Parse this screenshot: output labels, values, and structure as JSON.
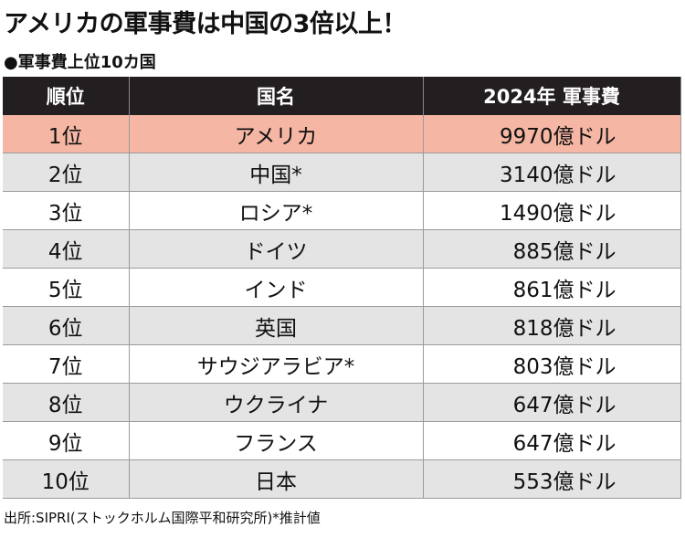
{
  "header": {
    "title": "アメリカの軍事費は中国の3倍以上！",
    "subtitle": "●軍事費上位10カ国"
  },
  "table": {
    "columns": [
      "順位",
      "国名",
      "2024年 軍事費"
    ],
    "rows": [
      [
        "1位",
        "アメリカ",
        "9970億ドル"
      ],
      [
        "2位",
        "中国*",
        "3140億ドル"
      ],
      [
        "3位",
        "ロシア*",
        "1490億ドル"
      ],
      [
        "4位",
        "ドイツ",
        "885億ドル"
      ],
      [
        "5位",
        "インド",
        "861億ドル"
      ],
      [
        "6位",
        "英国",
        "818億ドル"
      ],
      [
        "7位",
        "サウジアラビア*",
        "803億ドル"
      ],
      [
        "8位",
        "ウクライナ",
        "647億ドル"
      ],
      [
        "9位",
        "フランス",
        "647億ドル"
      ],
      [
        "10位",
        "日本",
        "553億ドル"
      ]
    ]
  },
  "footer": {
    "source": "出所:SIPRI(ストックホルム国際平和研究所)*推計値"
  }
}
